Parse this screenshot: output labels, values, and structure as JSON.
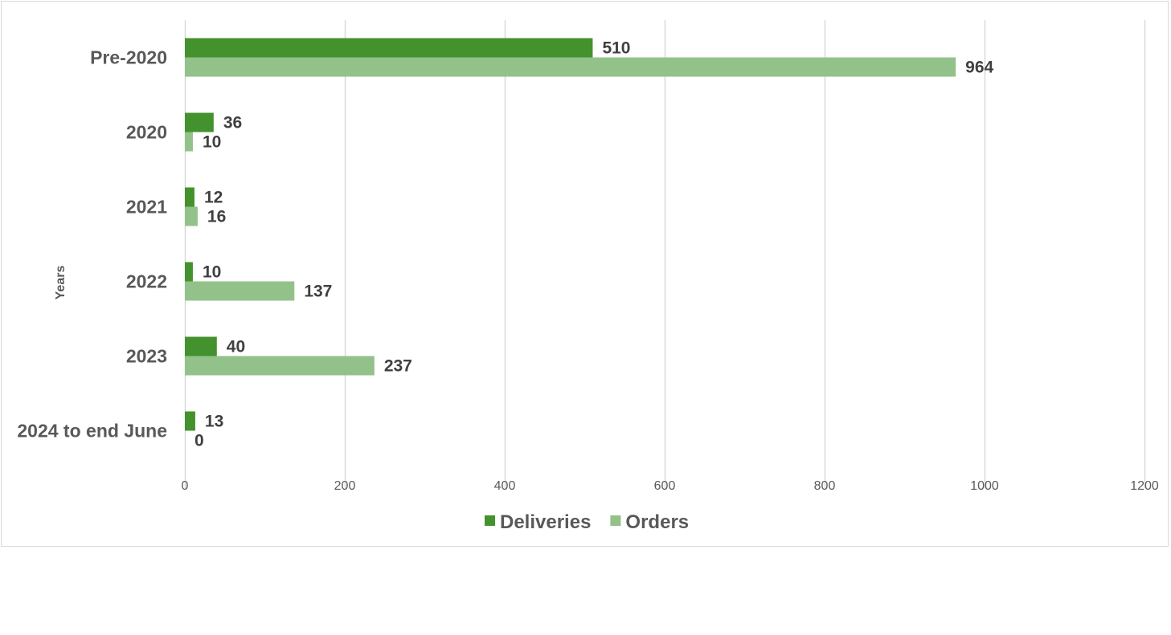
{
  "chart_data": {
    "type": "bar",
    "orientation": "horizontal",
    "categories": [
      "Pre-2020",
      "2020",
      "2021",
      "2022",
      "2023",
      "2024 to end June"
    ],
    "series": [
      {
        "name": "Deliveries",
        "values": [
          510,
          36,
          12,
          10,
          40,
          13
        ],
        "color": "#43922e"
      },
      {
        "name": "Orders",
        "values": [
          964,
          10,
          16,
          137,
          237,
          0
        ],
        "color": "#93c18a"
      }
    ],
    "ylabel": "Years",
    "xlabel": "",
    "xlim": [
      0,
      1200
    ],
    "xticks": [
      0,
      200,
      400,
      600,
      800,
      1000,
      1200
    ],
    "grid": true,
    "legend": "bottom-center"
  },
  "colors": {
    "gridline": "#d9d9d9",
    "border": "#d9d9d9"
  }
}
